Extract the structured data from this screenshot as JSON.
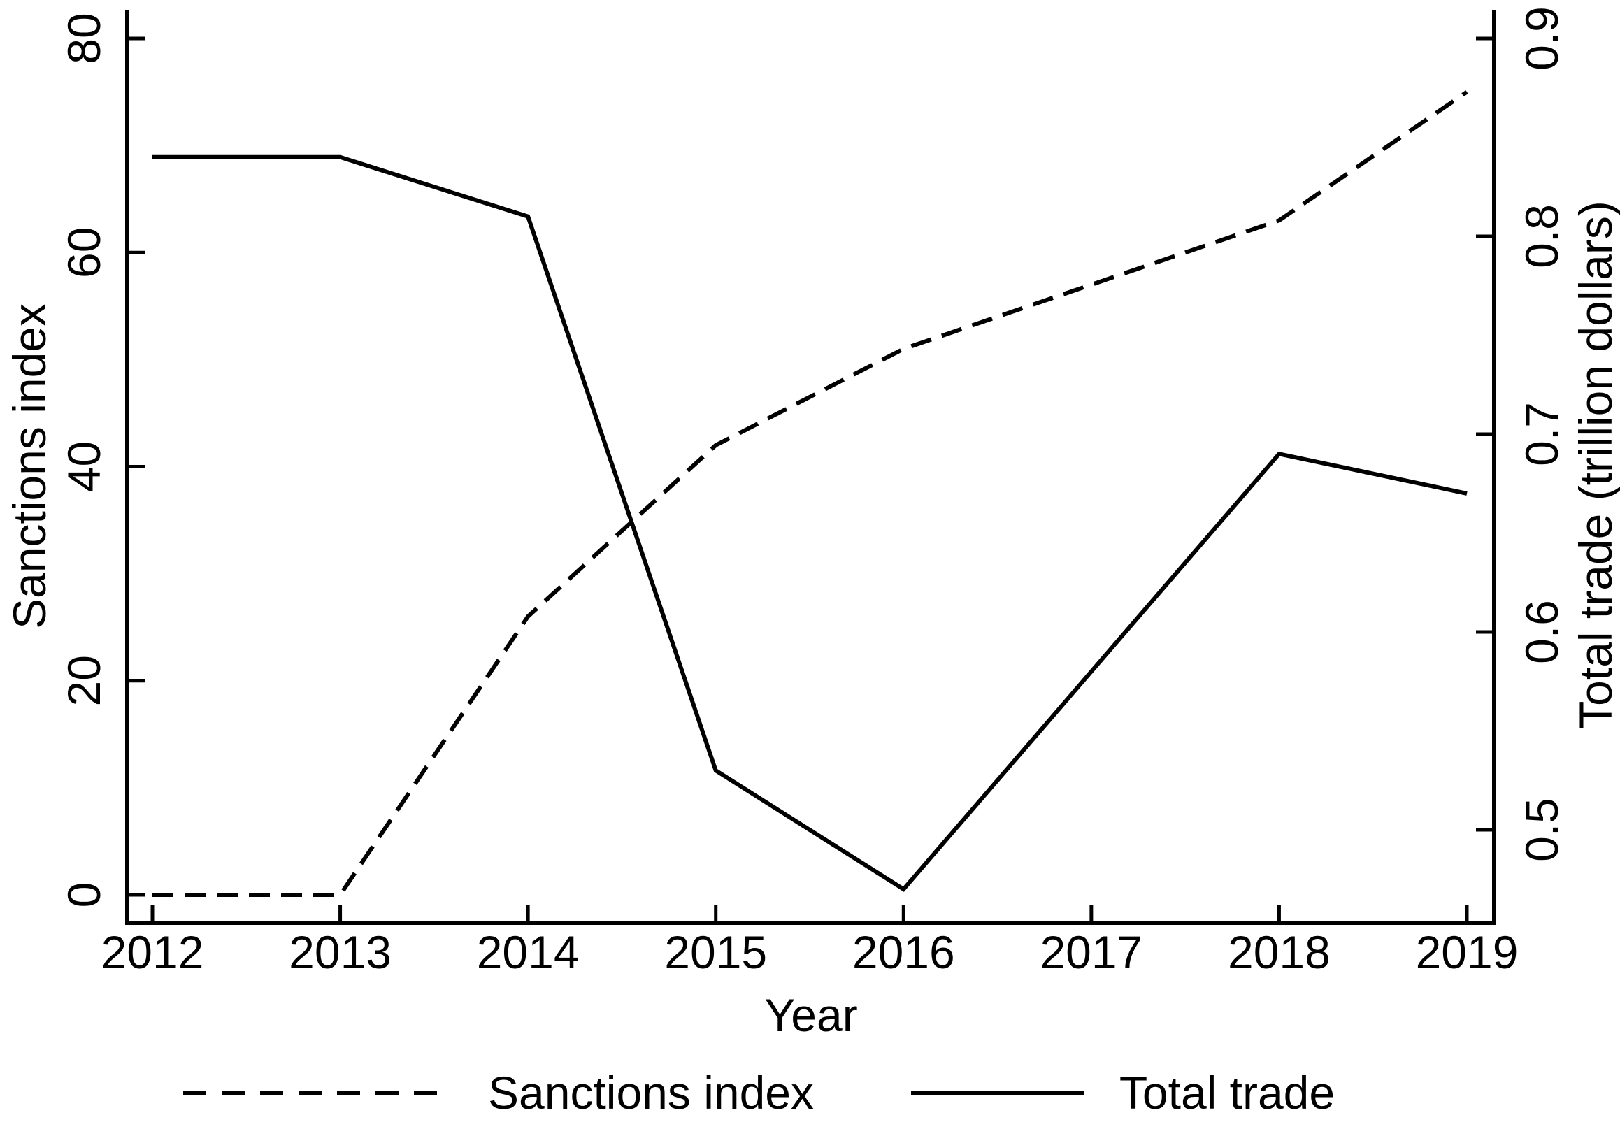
{
  "chart_data": {
    "type": "line",
    "title": "",
    "xlabel": "Year",
    "x": [
      2012,
      2013,
      2014,
      2015,
      2016,
      2017,
      2018,
      2019
    ],
    "x_tick_labels": [
      "2012",
      "2013",
      "2014",
      "2015",
      "2016",
      "2017",
      "2018",
      "2019"
    ],
    "series": [
      {
        "name": "Sanctions index",
        "axis": "left",
        "line_style": "dashed",
        "color": "#000000",
        "values": [
          0,
          0,
          26,
          42,
          51,
          57,
          63,
          75
        ]
      },
      {
        "name": "Total trade",
        "axis": "right",
        "line_style": "solid",
        "color": "#000000",
        "values": [
          0.84,
          0.84,
          0.81,
          0.53,
          0.47,
          0.58,
          0.69,
          0.67
        ]
      }
    ],
    "left_axis": {
      "label": "Sanctions index",
      "ticks": [
        0,
        20,
        40,
        60,
        80
      ],
      "tick_labels": [
        "0",
        "20",
        "40",
        "60",
        "80"
      ],
      "range": [
        -2.6,
        82.6
      ]
    },
    "right_axis": {
      "label": "Total trade (trillion dollars)",
      "ticks": [
        0.5,
        0.6,
        0.7,
        0.8,
        0.9
      ],
      "tick_labels": [
        "0.5",
        "0.6",
        "0.7",
        "0.8",
        "0.9"
      ],
      "range": [
        0.453,
        0.914
      ]
    },
    "legend": {
      "position": "bottom",
      "entries": [
        "Sanctions index",
        "Total trade"
      ]
    },
    "grid": false,
    "colors": {
      "foreground": "#000000",
      "background": "#ffffff"
    }
  }
}
